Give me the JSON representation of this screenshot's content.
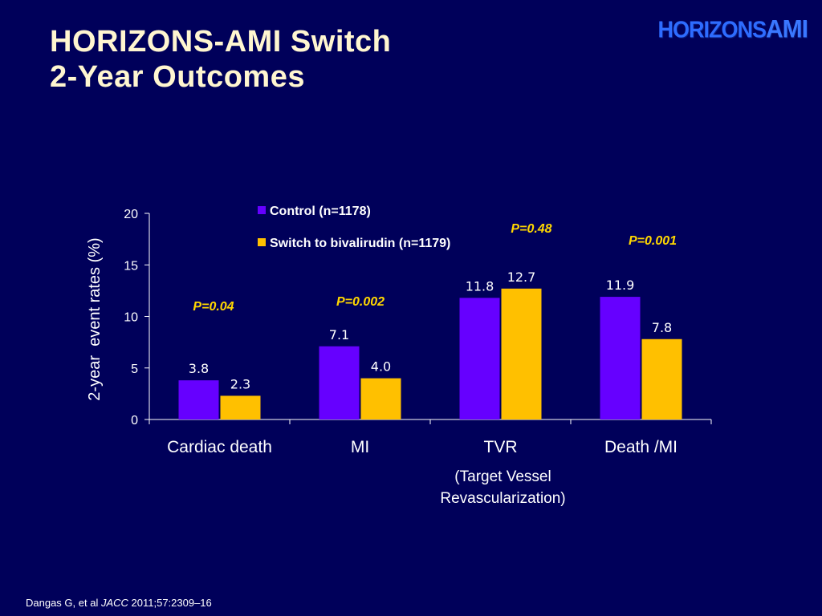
{
  "slide": {
    "title_line1": "HORIZONS-AMI Switch",
    "title_line2": "2-Year Outcomes",
    "logo_text_main": "HORIZONS",
    "logo_text_accent": "AMI",
    "citation_prefix": "Dangas G, et al ",
    "citation_journal": "JACC",
    "citation_suffix": " 2011;57:2309–16"
  },
  "colors": {
    "background": "#00005a",
    "control": "#6600ff",
    "switch": "#ffc000",
    "pvalue": "#ffd700",
    "title": "#fff6d0"
  },
  "chart_data": {
    "type": "bar",
    "categories": [
      "Cardiac death",
      "MI",
      "TVR",
      "Death /MI"
    ],
    "category_sublabels": [
      "",
      "",
      "(Target Vessel\nRevascularization)",
      ""
    ],
    "series": [
      {
        "name": "Control (n=1178)",
        "values": [
          3.8,
          7.1,
          11.8,
          11.9
        ],
        "labels": [
          "3.8",
          "7.1",
          "11.8",
          "11.9"
        ]
      },
      {
        "name": "Switch to bivalirudin (n=1179)",
        "values": [
          2.3,
          4.0,
          12.7,
          7.8
        ],
        "labels": [
          "2.3",
          "4.0",
          "12.7",
          "7.8"
        ]
      }
    ],
    "pvalues": [
      "P=0.04",
      "P=0.002",
      "P=0.48",
      "P=0.001"
    ],
    "ylabel": "2-year  event rates (%)",
    "xlabel": "",
    "ylim": [
      0,
      20
    ],
    "yticks": [
      0,
      5,
      10,
      15,
      20
    ],
    "grid": false,
    "legend_position": "top"
  }
}
